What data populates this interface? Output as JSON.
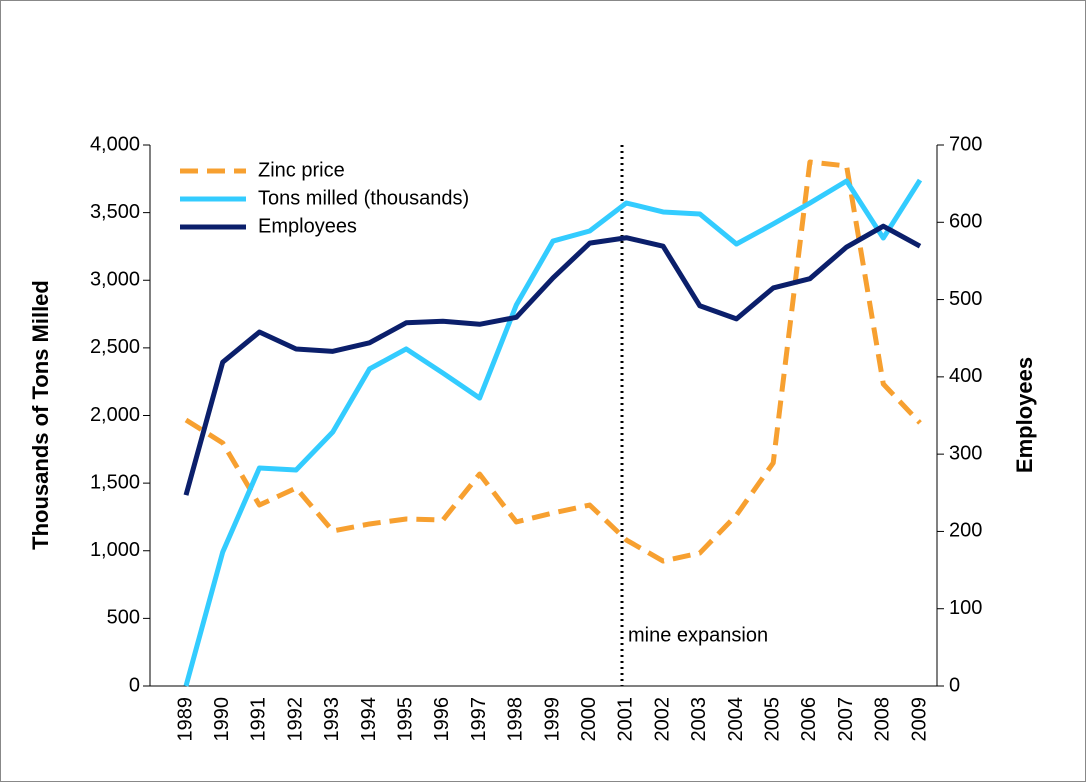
{
  "chart_data": {
    "type": "line",
    "y_label": "Thousands of Tons Milled",
    "y2_label": "Employees",
    "categories": [
      "1989",
      "1990",
      "1991",
      "1992",
      "1993",
      "1994",
      "1995",
      "1996",
      "1997",
      "1998",
      "1999",
      "2000",
      "2001",
      "2002",
      "2003",
      "2004",
      "2005",
      "2006",
      "2007",
      "2008",
      "2009"
    ],
    "series": [
      {
        "name": "Zinc price",
        "color": "#f7a030",
        "dash": true,
        "values": [
          1967,
          1797,
          1338,
          1464,
          1146,
          1198,
          1235,
          1227,
          1567,
          1213,
          1279,
          1338,
          1079,
          924,
          983,
          1264,
          1649,
          3874,
          3845,
          2233,
          1945
        ]
      },
      {
        "name": "Tons milled (thousands)",
        "color": "#33ccff",
        "values": [
          0,
          990,
          1612,
          1597,
          1878,
          2344,
          2492,
          2314,
          2129,
          2817,
          3290,
          3364,
          3571,
          3505,
          3490,
          3268,
          3416,
          3571,
          3734,
          3312,
          3741
        ]
      },
      {
        "name": "Employees",
        "color": "#0b1f6b",
        "axis": "y2",
        "values": [
          247,
          419,
          458,
          436,
          433,
          444,
          470,
          472,
          468,
          477,
          528,
          573,
          580,
          569,
          492,
          475,
          515,
          527,
          568,
          595,
          569
        ]
      }
    ],
    "ylim": [
      0,
      4000
    ],
    "yticks": [
      0,
      {
        "value": 500,
        "label": "500"
      },
      {
        "value": 1000,
        "label": "1,000"
      },
      {
        "value": 1500,
        "label": "1,500"
      },
      {
        "value": 2000,
        "label": "2,000"
      },
      {
        "value": 2500,
        "label": "2,500"
      },
      {
        "value": 3000,
        "label": "3,000"
      },
      {
        "value": 3500,
        "label": "3,500"
      },
      {
        "value": 4000,
        "label": "4,000"
      }
    ],
    "y2lim": [
      0,
      700
    ],
    "y2ticks": [
      0,
      100,
      200,
      300,
      400,
      500,
      600,
      700
    ],
    "annotations": [
      {
        "text": "mine expansion"
      }
    ],
    "legend": "top-left"
  }
}
